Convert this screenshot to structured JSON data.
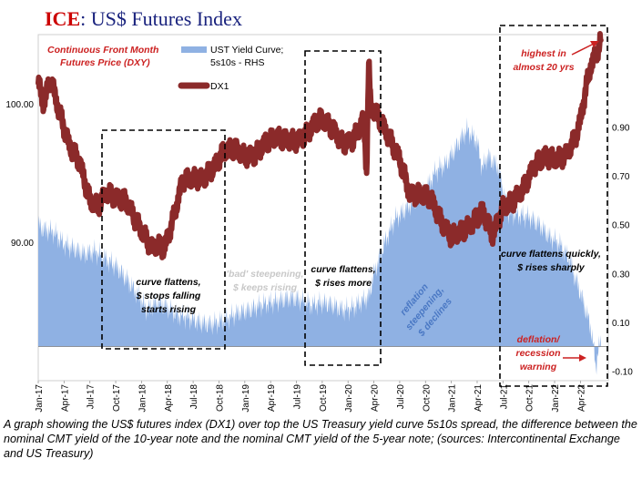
{
  "title": {
    "brand": "ICE",
    "rest": ": US$ Futures Index"
  },
  "subtitle": {
    "line1": "Continuous  Front Month",
    "line2": "Futures Price (DXY)"
  },
  "legend": {
    "yield": {
      "line1": "UST Yield Curve;",
      "line2": "5s10s - RHS"
    },
    "dx1": "DX1"
  },
  "annotations": {
    "box1": [
      "curve flattens,",
      "$ stops falling",
      "starts rising"
    ],
    "bad": [
      "'bad' steepening,",
      "$ keeps rising"
    ],
    "box2": [
      "curve flattens,",
      "$ rises more"
    ],
    "reflation": [
      "reflation",
      "steepening,",
      "$ declines"
    ],
    "box3": [
      "curve flattens quickly,",
      "$ rises sharply"
    ],
    "highest": [
      "highest in",
      "almost 20 yrs"
    ],
    "deflation": [
      "deflation/",
      "recession",
      "warning"
    ]
  },
  "caption": "A graph showing the US$ futures index (DX1) over top the US Treasury yield curve 5s10s spread, the difference between the nominal CMT yield of the 10-year note and the nominal CMT yield of the 5-year note; (sources: Intercontinental Exchange and US Treasury)",
  "colors": {
    "dxy": "#8b2a2a",
    "yield": "#8fb1e3",
    "title_red": "#cc0000",
    "title_blue": "#1a237e",
    "annot_red": "#cc2222",
    "annot_grey": "#cfcfcf",
    "annot_blue": "#4a78c4"
  },
  "chart_data": {
    "type": "line",
    "title": "ICE: US$ Futures Index",
    "x_tick_labels": [
      "Jan-17",
      "Apr-17",
      "Jul-17",
      "Oct-17",
      "Jan-18",
      "Apr-18",
      "Jul-18",
      "Oct-18",
      "Jan-19",
      "Apr-19",
      "Jul-19",
      "Oct-19",
      "Jan-20",
      "Apr-20",
      "Jul-20",
      "Oct-20",
      "Jan-21",
      "Apr-21",
      "Jul-21",
      "Oct-21",
      "Jan-22",
      "Apr-22"
    ],
    "left_axis": {
      "series": "DX1",
      "ticks": [
        "90.00",
        "100.00"
      ],
      "tick_values": [
        90,
        100
      ],
      "range": [
        80,
        105
      ]
    },
    "right_axis": {
      "series": "UST Yield Curve; 5s10s - RHS",
      "ticks": [
        "-0.10",
        "0.10",
        "0.30",
        "0.50",
        "0.70",
        "0.90"
      ],
      "tick_values": [
        -0.1,
        0.1,
        0.3,
        0.5,
        0.7,
        0.9
      ],
      "range": [
        -0.14,
        1.28
      ]
    },
    "series": [
      {
        "name": "DX1",
        "type": "line",
        "axis": "left",
        "t": [
          2017.0,
          2017.05,
          2017.12,
          2017.2,
          2017.3,
          2017.4,
          2017.5,
          2017.58,
          2017.66,
          2017.75,
          2017.85,
          2017.95,
          2018.05,
          2018.1,
          2018.15,
          2018.22,
          2018.3,
          2018.4,
          2018.5,
          2018.6,
          2018.7,
          2018.8,
          2018.9,
          2019.0,
          2019.1,
          2019.2,
          2019.3,
          2019.4,
          2019.5,
          2019.6,
          2019.7,
          2019.75,
          2019.85,
          2019.95,
          2020.05,
          2020.15,
          2020.18,
          2020.2,
          2020.22,
          2020.25,
          2020.3,
          2020.4,
          2020.5,
          2020.6,
          2020.7,
          2020.8,
          2020.9,
          2021.0,
          2021.1,
          2021.2,
          2021.3,
          2021.4,
          2021.5,
          2021.6,
          2021.7,
          2021.8,
          2021.9,
          2022.0,
          2022.1,
          2022.2,
          2022.25,
          2022.3,
          2022.35,
          2022.4,
          2022.45
        ],
        "values": [
          101.5,
          100.0,
          101.8,
          99.5,
          97.0,
          95.8,
          93.0,
          92.6,
          93.6,
          93.2,
          93.0,
          91.5,
          90.2,
          89.6,
          89.8,
          89.5,
          91.5,
          94.5,
          94.6,
          94.6,
          95.4,
          96.6,
          96.8,
          96.2,
          96.3,
          97.2,
          97.6,
          97.4,
          97.3,
          97.8,
          98.8,
          98.9,
          98.2,
          97.1,
          97.4,
          98.9,
          95.0,
          103.0,
          99.8,
          99.5,
          99.0,
          97.5,
          96.0,
          93.4,
          93.5,
          93.2,
          91.5,
          90.4,
          90.8,
          91.3,
          92.3,
          90.5,
          92.5,
          93.0,
          93.9,
          95.5,
          96.2,
          96.0,
          96.2,
          97.5,
          98.8,
          101.0,
          102.8,
          103.5,
          104.7
        ]
      },
      {
        "name": "UST Yield Curve; 5s10s - RHS",
        "type": "area",
        "axis": "right",
        "t": [
          2017.0,
          2017.05,
          2017.15,
          2017.25,
          2017.35,
          2017.45,
          2017.55,
          2017.65,
          2017.75,
          2017.85,
          2017.95,
          2018.05,
          2018.15,
          2018.25,
          2018.35,
          2018.45,
          2018.55,
          2018.65,
          2018.75,
          2018.85,
          2018.95,
          2019.05,
          2019.15,
          2019.25,
          2019.35,
          2019.45,
          2019.55,
          2019.65,
          2019.75,
          2019.85,
          2019.95,
          2020.05,
          2020.15,
          2020.2,
          2020.25,
          2020.35,
          2020.45,
          2020.55,
          2020.65,
          2020.75,
          2020.85,
          2020.95,
          2021.05,
          2021.15,
          2021.25,
          2021.3,
          2021.35,
          2021.45,
          2021.55,
          2021.65,
          2021.75,
          2021.85,
          2021.95,
          2022.05,
          2022.15,
          2022.2,
          2022.25,
          2022.3,
          2022.35,
          2022.4,
          2022.45
        ],
        "values": [
          0.5,
          0.48,
          0.47,
          0.42,
          0.4,
          0.38,
          0.39,
          0.36,
          0.33,
          0.28,
          0.22,
          0.15,
          0.18,
          0.16,
          0.13,
          0.12,
          0.1,
          0.09,
          0.1,
          0.12,
          0.14,
          0.15,
          0.17,
          0.18,
          0.19,
          0.2,
          0.19,
          0.17,
          0.18,
          0.17,
          0.15,
          0.16,
          0.19,
          0.2,
          0.3,
          0.42,
          0.52,
          0.56,
          0.6,
          0.64,
          0.72,
          0.75,
          0.82,
          0.89,
          0.84,
          0.73,
          0.78,
          0.74,
          0.55,
          0.54,
          0.53,
          0.5,
          0.45,
          0.42,
          0.35,
          0.28,
          0.22,
          0.15,
          0.08,
          -0.08,
          0.04
        ]
      }
    ]
  }
}
